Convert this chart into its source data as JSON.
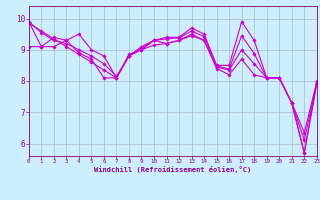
{
  "xlabel": "Windchill (Refroidissement éolien,°C)",
  "background_color": "#cceeff",
  "line_color": "#cc00cc",
  "grid_color": "#aabbcc",
  "xlim": [
    0,
    23
  ],
  "ylim": [
    5.6,
    10.4
  ],
  "yticks": [
    6,
    7,
    8,
    9,
    10
  ],
  "xticks": [
    0,
    1,
    2,
    3,
    4,
    5,
    6,
    7,
    8,
    9,
    10,
    11,
    12,
    13,
    14,
    15,
    16,
    17,
    18,
    19,
    20,
    21,
    22,
    23
  ],
  "series": [
    [
      9.9,
      9.1,
      9.1,
      9.3,
      9.5,
      9.0,
      8.8,
      8.1,
      8.8,
      9.1,
      9.3,
      9.4,
      9.4,
      9.7,
      9.5,
      8.5,
      8.5,
      9.9,
      9.3,
      8.1,
      8.1,
      7.3,
      5.7,
      7.9
    ],
    [
      9.1,
      9.1,
      9.4,
      9.3,
      8.9,
      8.7,
      8.1,
      8.1,
      8.8,
      9.0,
      9.3,
      9.2,
      9.3,
      9.5,
      9.3,
      8.4,
      8.2,
      8.7,
      8.2,
      8.1,
      8.1,
      7.3,
      5.7,
      8.0
    ]
  ],
  "trend_series": [
    [
      9.85,
      9.6,
      9.35,
      9.1,
      8.85,
      8.6,
      8.35,
      8.1,
      8.85,
      9.0,
      9.15,
      9.2,
      9.3,
      9.45,
      9.3,
      8.45,
      8.35,
      9.0,
      8.55,
      8.1,
      8.1,
      7.3,
      6.1,
      7.95
    ],
    [
      9.9,
      9.55,
      9.3,
      9.2,
      9.0,
      8.8,
      8.55,
      8.15,
      8.8,
      9.05,
      9.3,
      9.35,
      9.38,
      9.6,
      9.42,
      8.48,
      8.38,
      9.45,
      8.88,
      8.1,
      8.1,
      7.3,
      6.35,
      7.97
    ]
  ]
}
